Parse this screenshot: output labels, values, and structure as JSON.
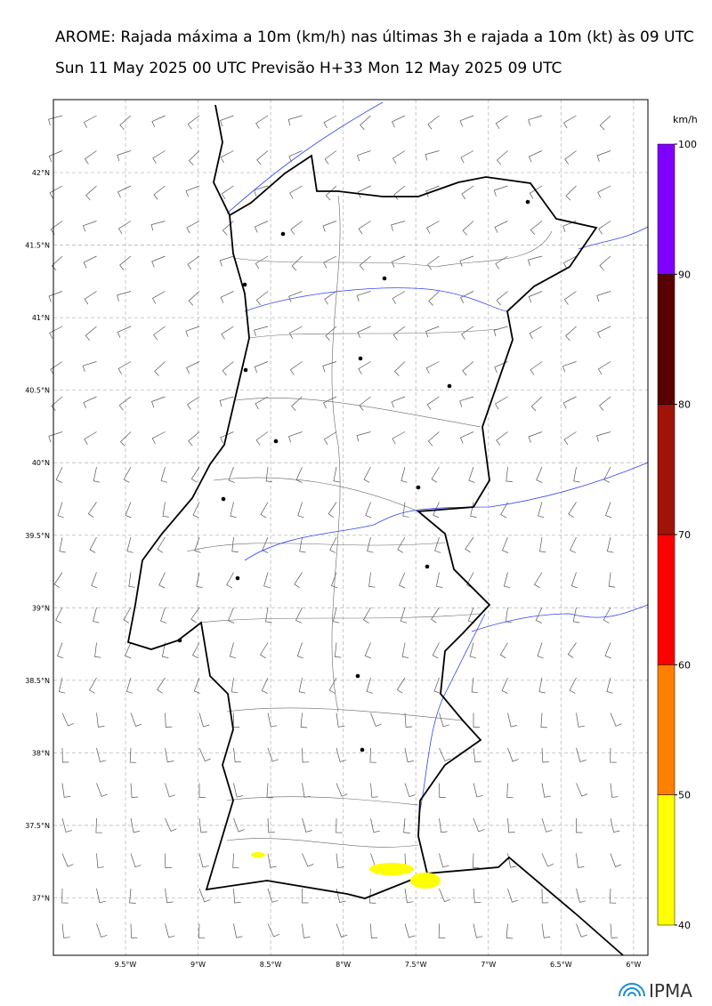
{
  "map": {
    "title": "AROME: Rajada máxima a 10m (km/h) nas últimas 3h e rajada a 10m (kt) às 09 UTC",
    "subtitle": "Sun 11 May 2025 00 UTC Previsão H+33 Mon 12 May 2025 09 UTC",
    "lat_ticks": [
      {
        "value": 42,
        "label": "42°N"
      },
      {
        "value": 41.5,
        "label": "41.5°N"
      },
      {
        "value": 41,
        "label": "41°N"
      },
      {
        "value": 40.5,
        "label": "40.5°N"
      },
      {
        "value": 40,
        "label": "40°N"
      },
      {
        "value": 39.5,
        "label": "39.5°N"
      },
      {
        "value": 39,
        "label": "39°N"
      },
      {
        "value": 38.5,
        "label": "38.5°N"
      },
      {
        "value": 38,
        "label": "38°N"
      },
      {
        "value": 37.5,
        "label": "37.5°N"
      },
      {
        "value": 37,
        "label": "37°N"
      }
    ],
    "lon_ticks": [
      {
        "value": -9.5,
        "label": "9.5°W"
      },
      {
        "value": -9,
        "label": "9°W"
      },
      {
        "value": -8.5,
        "label": "8.5°W"
      },
      {
        "value": -8,
        "label": "8°W"
      },
      {
        "value": -7.5,
        "label": "7.5°W"
      },
      {
        "value": -7,
        "label": "7°W"
      },
      {
        "value": -6.5,
        "label": "6.5°W"
      },
      {
        "value": -6,
        "label": "6°W"
      }
    ],
    "colorbar": {
      "unit": "km/h",
      "levels": [
        40,
        50,
        60,
        70,
        80,
        90,
        100
      ],
      "colors": [
        "#ffff00",
        "#ff8000",
        "#ff0000",
        "#a01408",
        "#5a0000",
        "#8000ff"
      ]
    },
    "logo": "IPMA"
  }
}
